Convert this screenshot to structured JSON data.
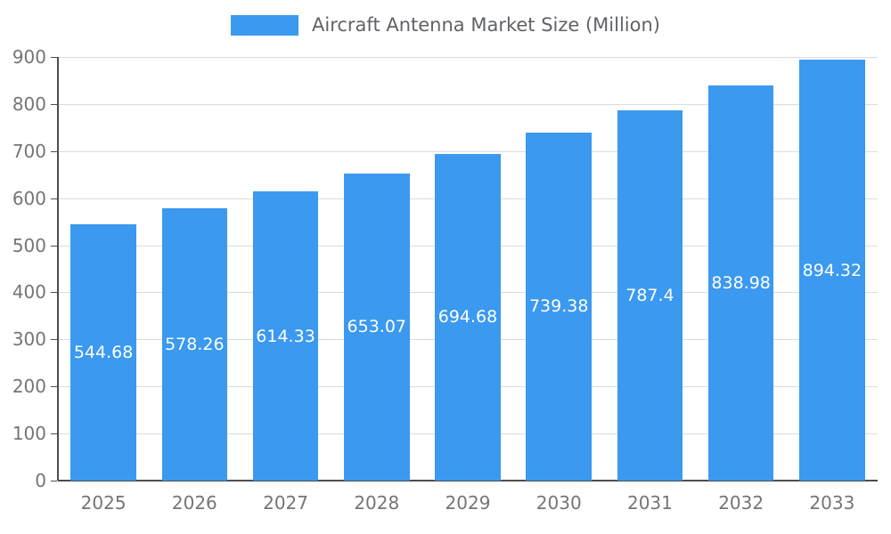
{
  "chart_data": {
    "type": "bar",
    "title": "Aircraft Antenna Market Size (Million)",
    "categories": [
      "2025",
      "2026",
      "2027",
      "2028",
      "2029",
      "2030",
      "2031",
      "2032",
      "2033"
    ],
    "series": [
      {
        "name": "Aircraft Antenna Market Size (Million)",
        "values": [
          544.68,
          578.26,
          614.33,
          653.07,
          694.68,
          739.38,
          787.4,
          838.98,
          894.32
        ],
        "labels": [
          "544.68",
          "578.26",
          "614.33",
          "653.07",
          "694.68",
          "739.38",
          "787.4",
          "838.98",
          "894.32"
        ]
      }
    ],
    "xlabel": "",
    "ylabel": "",
    "ylim": [
      0,
      900
    ],
    "yticks": [
      0,
      100,
      200,
      300,
      400,
      500,
      600,
      700,
      800,
      900
    ],
    "grid": true,
    "legend_position": "top",
    "value_labels_position": "inside-center",
    "colors": {
      "bar": "#3B99EF",
      "bar_label": "#FFFFFF",
      "axis_text": "#757575",
      "title_text": "#5F6368",
      "grid_line": "#DCDCDC",
      "axis_line": "#4D4D4D"
    }
  }
}
